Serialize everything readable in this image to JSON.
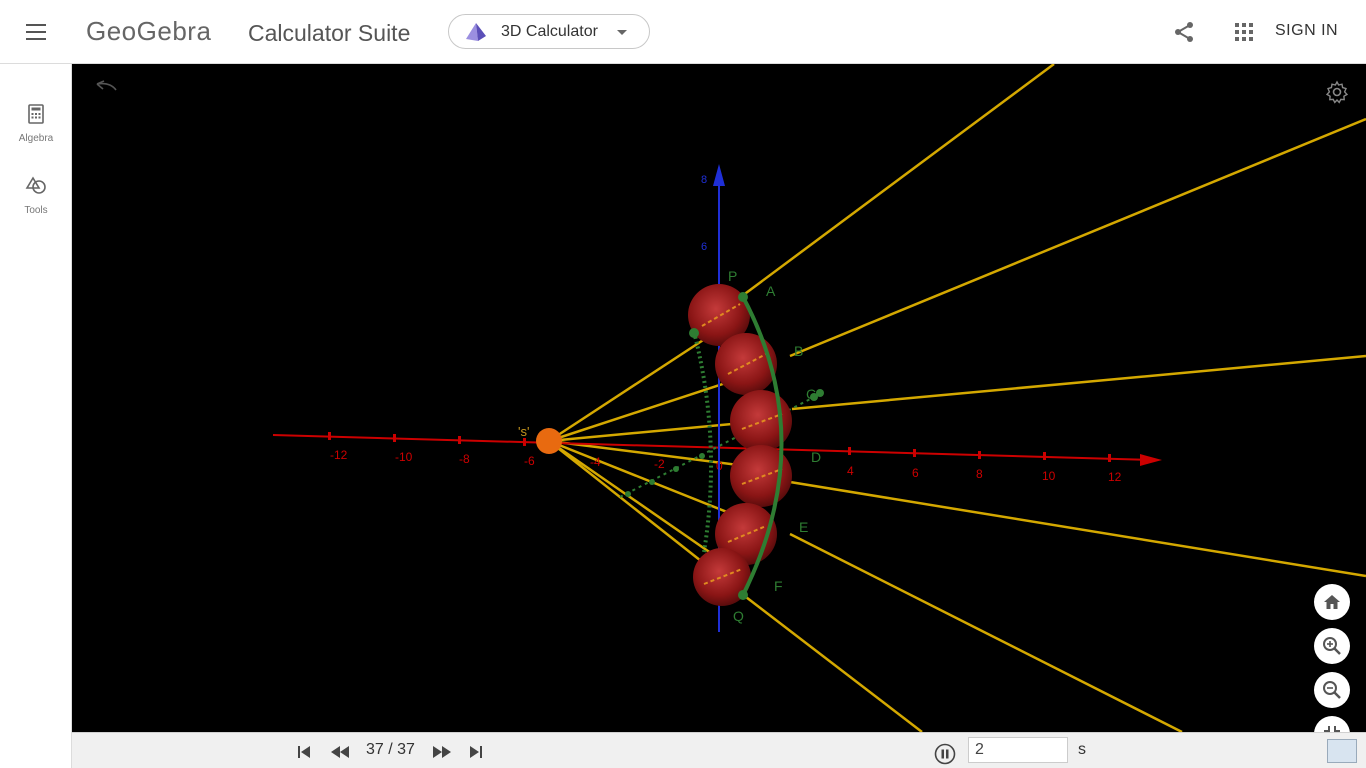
{
  "header": {
    "logo": "GeoGebra",
    "suite_title": "Calculator Suite",
    "app_picker_label": "3D Calculator",
    "signin_label": "SIGN IN",
    "icons": [
      "menu-icon",
      "pyramid-icon",
      "chevron-down-icon",
      "share-icon",
      "apps-grid-icon"
    ]
  },
  "sidebar": {
    "items": [
      {
        "label": "Algebra",
        "icon": "calculator-icon"
      },
      {
        "label": "Tools",
        "icon": "tools-icon"
      }
    ]
  },
  "graphics": {
    "axis_ticks_x": [
      "-12",
      "-10",
      "-8",
      "-6",
      "-4",
      "-2",
      "0",
      "4",
      "6",
      "8",
      "10",
      "12"
    ],
    "axis_ticks_z": [
      "8",
      "6"
    ],
    "point_labels": [
      "P",
      "A",
      "B",
      "C",
      "D",
      "E",
      "F",
      "Q"
    ],
    "source_label": "'s'",
    "colors": {
      "background": "#000000",
      "x_axis": "#cc0000",
      "z_axis": "#1f2fd6",
      "rays": "#d4a800",
      "mirror": "#2e7d32",
      "spheres": "#9a1c1c",
      "source": "#e86a10"
    }
  },
  "animation": {
    "frame_counter": "37 / 37",
    "speed_value": "2",
    "speed_unit": "s",
    "controls": [
      "skip-start-icon",
      "rewind-icon",
      "fast-forward-icon",
      "skip-end-icon",
      "pause-icon"
    ]
  },
  "view_controls": [
    "home-icon",
    "zoom-in-icon",
    "zoom-out-icon",
    "exit-fullscreen-icon"
  ]
}
